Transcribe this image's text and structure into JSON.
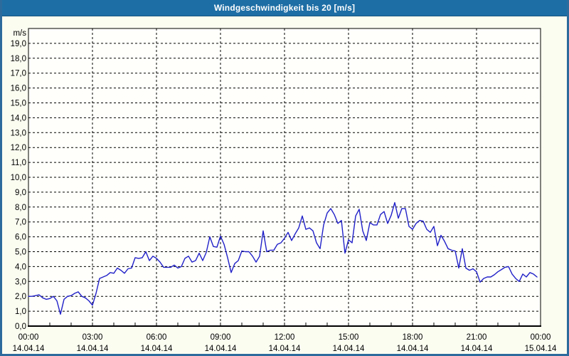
{
  "title": "Windgeschwindigkeit bis 20 [m/s]",
  "colors": {
    "title_bar": "#1d6ea5",
    "title_text": "#ffffff",
    "frame_border": "#2d6b9d",
    "page_bg": "#fbfdf1",
    "plot_bg": "#fffffc",
    "line": "#2020c8",
    "grid": "#000000",
    "axis_text": "#000000"
  },
  "chart_data": {
    "type": "line",
    "title": "Windgeschwindigkeit bis 20 [m/s]",
    "ylabel": "m/s",
    "xlabel": "",
    "ylim": [
      0,
      20
    ],
    "y_tick_step": 1,
    "grid": "dashed",
    "legend": "none",
    "y_axis_unit_label": "m/s",
    "y_tick_labels": [
      "0,0",
      "1,0",
      "2,0",
      "3,0",
      "4,0",
      "5,0",
      "6,0",
      "7,0",
      "8,0",
      "9,0",
      "10,0",
      "11,0",
      "12,0",
      "13,0",
      "14,0",
      "15,0",
      "16,0",
      "17,0",
      "18,0",
      "19,0"
    ],
    "x_axis": {
      "span_hours": 24,
      "minor_tick_every_hours": 1,
      "gridline_every_hours": 3,
      "ticks": [
        {
          "time": "00:00",
          "date": "14.04.14",
          "hour": 0
        },
        {
          "time": "03:00",
          "date": "14.04.14",
          "hour": 3
        },
        {
          "time": "06:00",
          "date": "14.04.14",
          "hour": 6
        },
        {
          "time": "09:00",
          "date": "14.04.14",
          "hour": 9
        },
        {
          "time": "12:00",
          "date": "14.04.14",
          "hour": 12
        },
        {
          "time": "15:00",
          "date": "14.04.14",
          "hour": 15
        },
        {
          "time": "18:00",
          "date": "14.04.14",
          "hour": 18
        },
        {
          "time": "21:00",
          "date": "14.04.14",
          "hour": 21
        },
        {
          "time": "00:00",
          "date": "15.04.14",
          "hour": 24
        }
      ]
    },
    "series": [
      {
        "name": "Windgeschwindigkeit",
        "unit": "m/s",
        "start_time": "00:00",
        "interval_minutes": 10,
        "values": [
          2.0,
          2.0,
          2.05,
          2.1,
          1.9,
          1.8,
          1.85,
          2.0,
          1.7,
          0.8,
          1.8,
          2.0,
          2.05,
          2.2,
          2.3,
          2.0,
          1.9,
          1.7,
          1.4,
          2.2,
          3.2,
          3.3,
          3.4,
          3.6,
          3.55,
          3.9,
          3.75,
          3.55,
          3.85,
          3.9,
          4.6,
          4.55,
          4.6,
          5.0,
          4.4,
          4.7,
          4.55,
          4.3,
          3.95,
          3.95,
          3.95,
          4.1,
          3.9,
          4.0,
          4.55,
          4.7,
          4.3,
          4.4,
          4.9,
          4.4,
          4.95,
          6.0,
          5.35,
          5.3,
          6.05,
          5.5,
          4.6,
          3.6,
          4.2,
          4.4,
          5.05,
          5.0,
          5.0,
          4.7,
          4.3,
          4.7,
          6.4,
          5.0,
          5.1,
          5.1,
          5.5,
          5.6,
          5.9,
          6.3,
          5.75,
          6.2,
          6.6,
          7.4,
          6.5,
          6.6,
          6.4,
          5.6,
          5.2,
          6.8,
          7.6,
          7.9,
          7.5,
          6.9,
          7.1,
          4.9,
          5.8,
          5.6,
          7.4,
          7.85,
          6.4,
          5.75,
          6.95,
          6.8,
          6.8,
          7.5,
          7.7,
          6.9,
          7.45,
          8.3,
          7.25,
          7.9,
          7.9,
          6.7,
          6.5,
          6.9,
          7.1,
          7.05,
          6.5,
          6.3,
          6.7,
          5.4,
          6.1,
          5.7,
          5.2,
          5.1,
          5.05,
          3.9,
          5.2,
          3.9,
          3.75,
          3.85,
          3.65,
          2.95,
          3.2,
          3.3,
          3.3,
          3.45,
          3.65,
          3.8,
          3.95,
          4.0,
          3.5,
          3.2,
          3.0,
          3.5,
          3.3,
          3.6,
          3.5,
          3.3
        ]
      }
    ]
  }
}
